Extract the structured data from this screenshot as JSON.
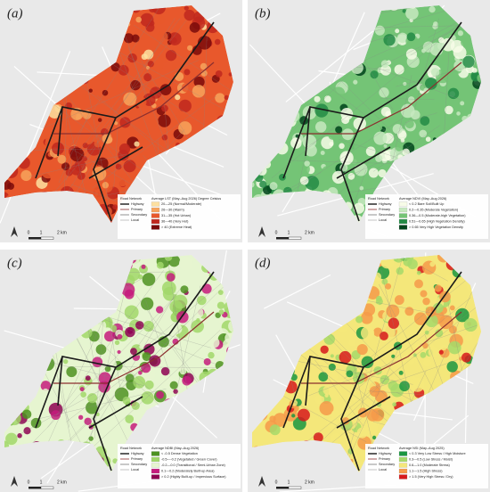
{
  "road_network": {
    "title": "Road Network",
    "items": [
      {
        "label": "Highway",
        "color": "#1a1a1a"
      },
      {
        "label": "Primary",
        "color": "#8b2f2f"
      },
      {
        "label": "Secondary",
        "color": "#777777"
      },
      {
        "label": "Local",
        "color": "#b5b5b5"
      }
    ]
  },
  "scale": {
    "labels": [
      "0",
      "1",
      "2 km"
    ]
  },
  "panels": [
    {
      "label": "(a)",
      "legend": {
        "title": "Average LST (May–Aug 2026) Degree Celsius",
        "classes": [
          {
            "label": "20—25 (Normal/Moderate)",
            "color": "#fde0a0"
          },
          {
            "label": "26—30 (Warm)",
            "color": "#f7a35c"
          },
          {
            "label": "31—35 (Hot Urban)",
            "color": "#e8582c"
          },
          {
            "label": "36—40 (Very Hot)",
            "color": "#c0281e"
          },
          {
            "label": "> 40 (Extreme Heat)",
            "color": "#7a0a0a"
          }
        ]
      }
    },
    {
      "label": "(b)",
      "legend": {
        "title": "Average NDVI (May–Aug 2026)",
        "classes": [
          {
            "label": "< 0.2 Bare Soil/Built Up",
            "color": "#f7fbe8"
          },
          {
            "label": "0.2—0.35 (Moderate Vegetation)",
            "color": "#c7e9c0"
          },
          {
            "label": "0.36—0.5 (Moderate-high Vegetation)",
            "color": "#74c476"
          },
          {
            "label": "0.51—0.65 (High Vegetation Density)",
            "color": "#238b45"
          },
          {
            "label": "> 0.65 Very High Vegetation Density",
            "color": "#00441b"
          }
        ]
      }
    },
    {
      "label": "(c)",
      "legend": {
        "title": "Average NDBI (May–Aug 2026)",
        "classes": [
          {
            "label": "< -0.5 Dense Vegetation",
            "color": "#4d9221"
          },
          {
            "label": "-0.5—-0.2 (Vegetated / Green Cover)",
            "color": "#a1d76a"
          },
          {
            "label": "-0.2—0.0 (Transitional / Semi-Urban Zone)",
            "color": "#e6f5d0"
          },
          {
            "label": "0.1—0.2 (Moderately Built-up Area)",
            "color": "#c51b7d"
          },
          {
            "label": "> 0.2 (Highly Built-up / Impervious Surface)",
            "color": "#8e0152"
          }
        ]
      }
    },
    {
      "label": "(d)",
      "legend": {
        "title": "Average NSI (May–Aug 2025)",
        "classes": [
          {
            "label": "< 0.3 Very Low Stress / High Moisture",
            "color": "#1a9641"
          },
          {
            "label": "0.3—0.5 (Low Stress / Moist)",
            "color": "#a6d96a"
          },
          {
            "label": "0.6—1.0 (Moderate Stress)",
            "color": "#f4e77a"
          },
          {
            "label": "1.1—1.5 (High Stress)",
            "color": "#f59a4a"
          },
          {
            "label": "> 1.5 (Very High Stress / Dry)",
            "color": "#d7191c"
          }
        ]
      }
    }
  ]
}
